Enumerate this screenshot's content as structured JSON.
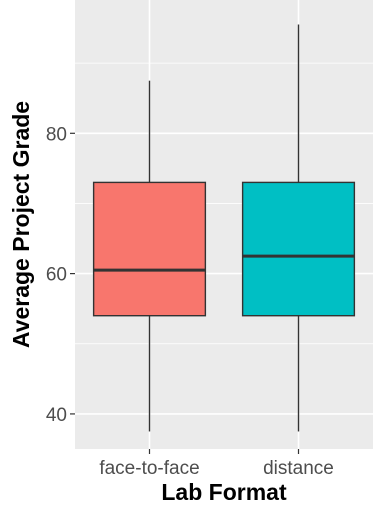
{
  "chart_data": {
    "type": "boxplot",
    "title": "",
    "xlabel": "Lab Format",
    "ylabel": "Average Project Grade",
    "ylim": [
      35,
      99
    ],
    "yticks": [
      40,
      60,
      80
    ],
    "ytick_labels": [
      "40",
      "60",
      "80"
    ],
    "categories": [
      "face-to-face",
      "distance"
    ],
    "boxes": [
      {
        "category": "face-to-face",
        "whisker_low": 37.5,
        "q1": 54,
        "median": 60.5,
        "q3": 73,
        "whisker_high": 87.5,
        "color": "#F8766D"
      },
      {
        "category": "distance",
        "whisker_low": 37.5,
        "q1": 54,
        "median": 62.5,
        "q3": 73,
        "whisker_high": 95.5,
        "color": "#00BFC4"
      }
    ],
    "grid": true,
    "legend": "none"
  }
}
